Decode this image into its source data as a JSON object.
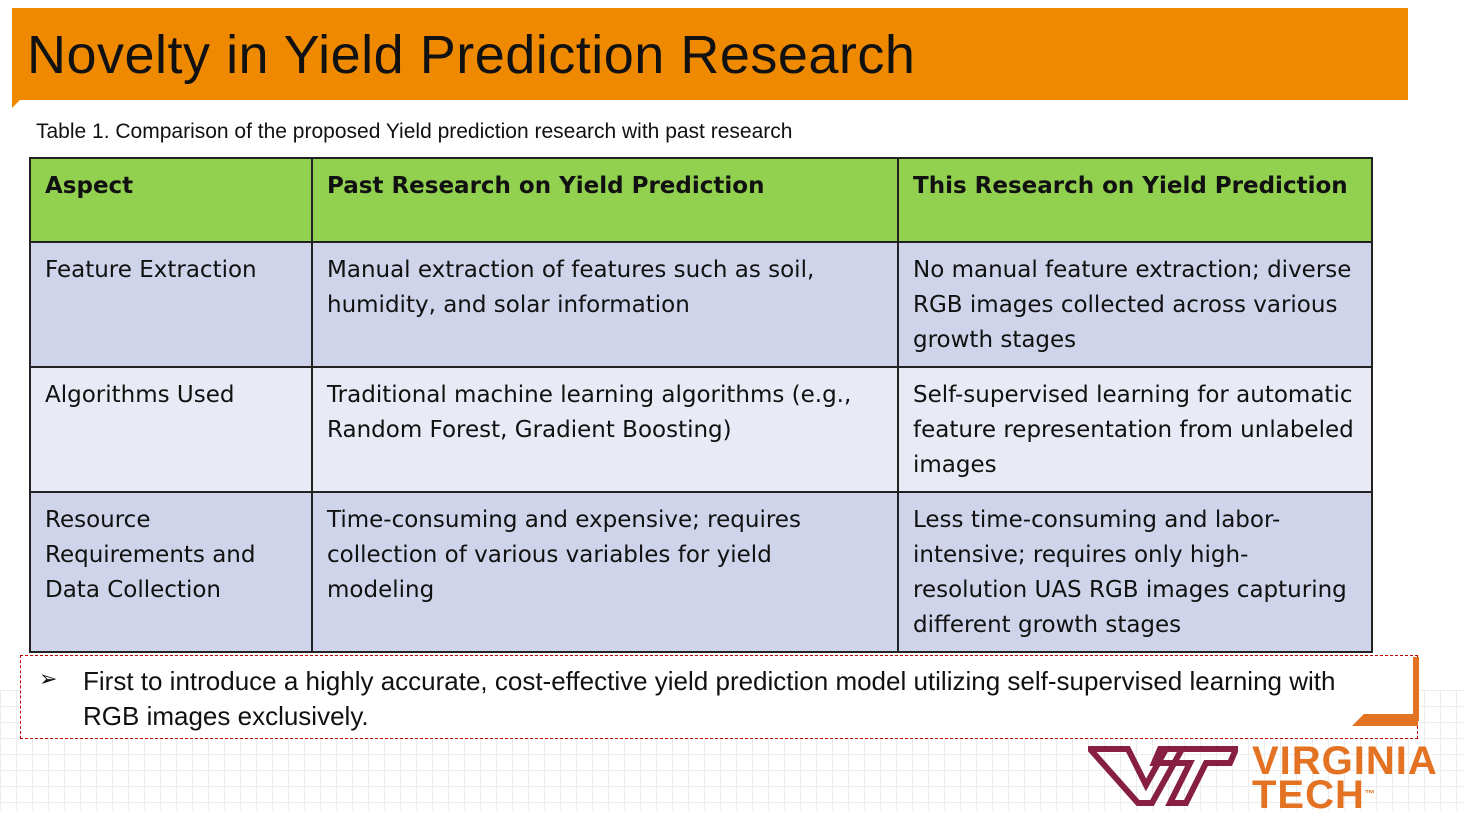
{
  "slide": {
    "title": "Novelty in Yield Prediction Research",
    "caption": "Table 1. Comparison of the proposed Yield prediction research with past research"
  },
  "table": {
    "headers": [
      "Aspect",
      "Past Research on Yield Prediction",
      "This Research on Yield Prediction"
    ],
    "rows": [
      [
        "Feature Extraction",
        "Manual extraction of features such as soil, humidity, and solar information",
        "No manual feature extraction; diverse RGB images collected across various growth stages"
      ],
      [
        "Algorithms Used",
        "Traditional machine learning algorithms (e.g., Random Forest, Gradient Boosting)",
        "Self-supervised learning for automatic feature representation from unlabeled images"
      ],
      [
        "Resource Requirements and Data Collection",
        "Time-consuming and expensive; requires collection of various variables for yield modeling",
        "Less time-consuming and labor-intensive; requires only high-resolution UAS RGB images capturing different growth stages"
      ]
    ]
  },
  "bullet": {
    "marker": "➢",
    "text": "First to introduce a highly accurate, cost-effective yield prediction model utilizing self-supervised learning with RGB images exclusively."
  },
  "logo": {
    "line1": "VIRGINIA",
    "line2": "TECH",
    "tm": "™"
  },
  "colors": {
    "title_bar": "#ef8a00",
    "header_row": "#92d050",
    "row_dark": "#cfd4ea",
    "row_light": "#e8eaf5",
    "logo_maroon": "#861f41",
    "logo_orange": "#e37222",
    "box_border": "#c00000"
  }
}
